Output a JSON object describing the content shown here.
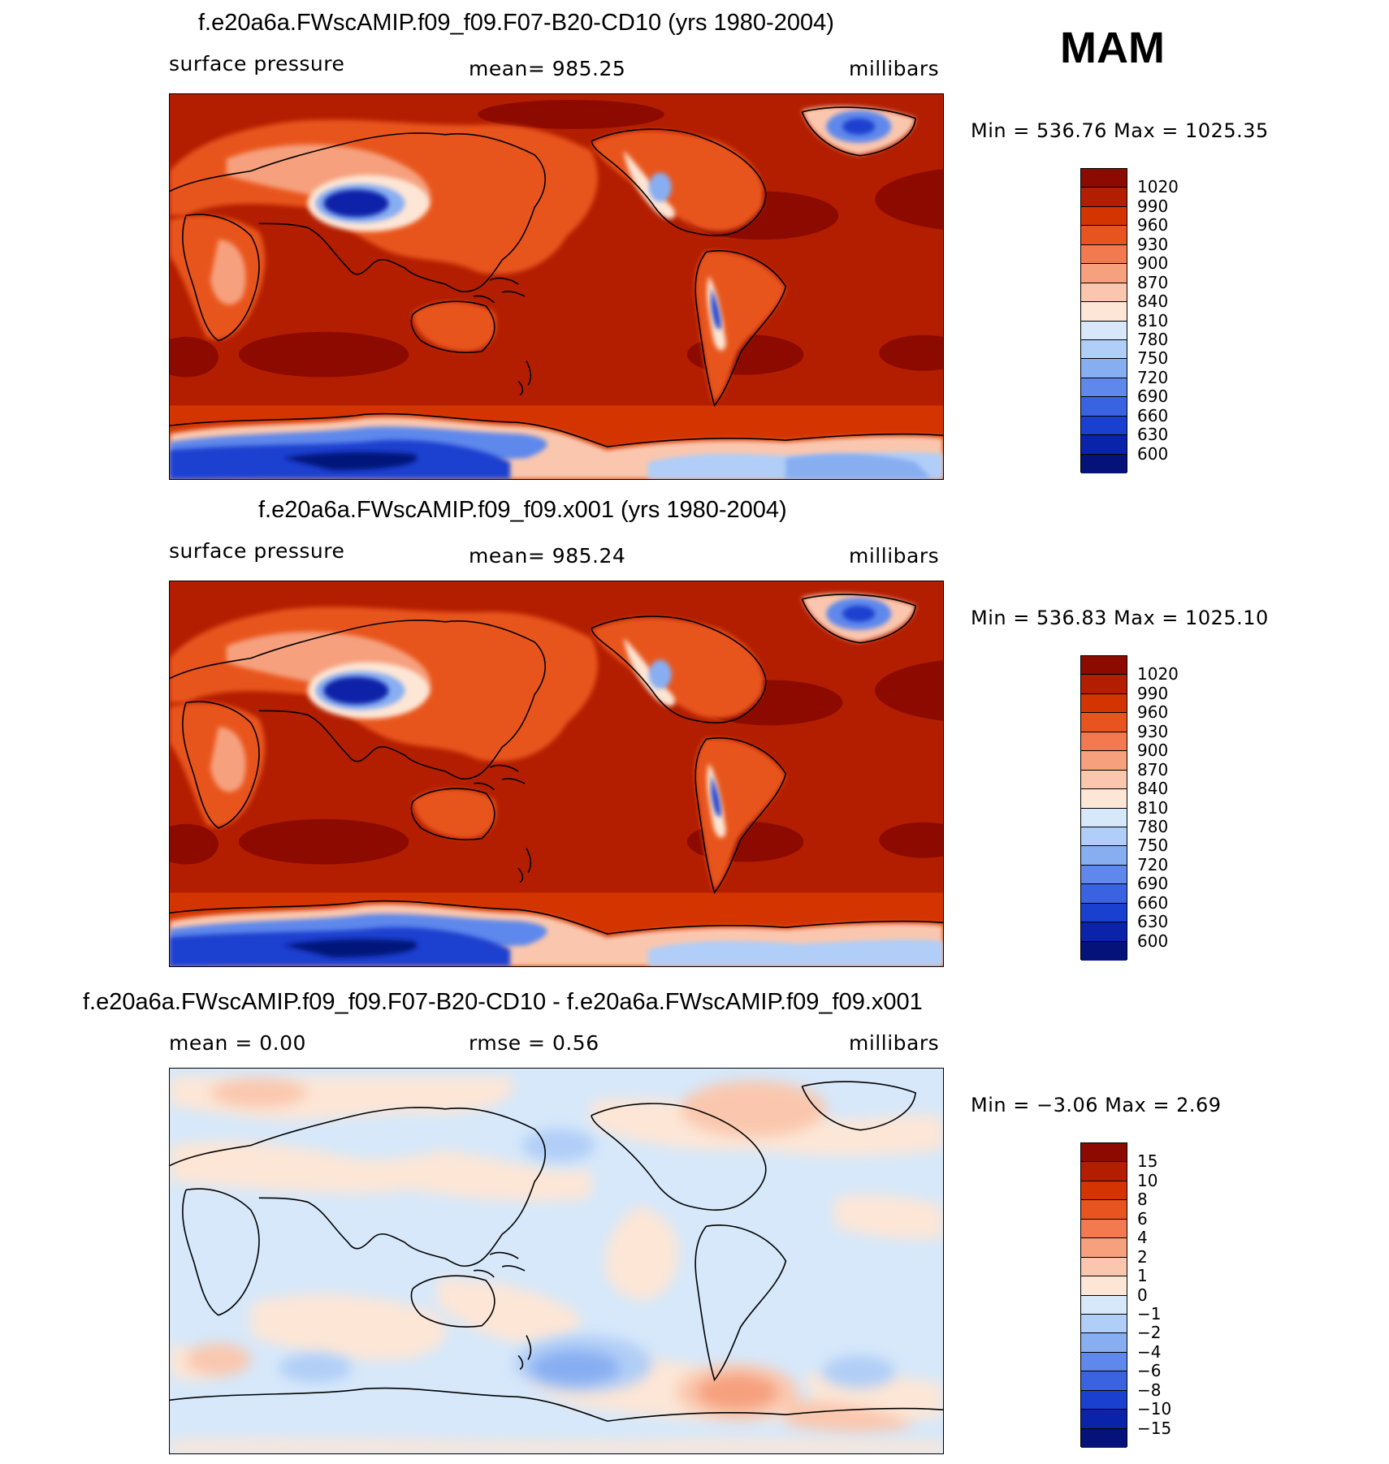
{
  "season": "MAM",
  "panels": [
    {
      "id": "test",
      "title": "f.e20a6a.FWscAMIP.f09_f09.F07-B20-CD10 (yrs 1980-2004)",
      "left_label": "surface pressure",
      "center_label": "mean=  985.25",
      "right_label": "millibars",
      "minmax": "Min  =  536.76  Max  =  1025.35",
      "colorbar": {
        "labels": [
          "1020",
          "990",
          "960",
          "930",
          "900",
          "870",
          "840",
          "810",
          "780",
          "750",
          "720",
          "690",
          "660",
          "630",
          "600"
        ],
        "colors": [
          "#8c0a00",
          "#b31e00",
          "#d43500",
          "#e8541f",
          "#f27a4e",
          "#f6a07e",
          "#fac7ae",
          "#fde6d6",
          "#d6e8fa",
          "#b0cef7",
          "#88aef2",
          "#5e88ec",
          "#3a63e2",
          "#1a40cf",
          "#0a23a8",
          "#05127a"
        ]
      }
    },
    {
      "id": "control",
      "title": "f.e20a6a.FWscAMIP.f09_f09.x001 (yrs 1980-2004)",
      "left_label": "surface pressure",
      "center_label": "mean=  985.24",
      "right_label": "millibars",
      "minmax": "Min  =  536.83  Max  =  1025.10",
      "colorbar": {
        "labels": [
          "1020",
          "990",
          "960",
          "930",
          "900",
          "870",
          "840",
          "810",
          "780",
          "750",
          "720",
          "690",
          "660",
          "630",
          "600"
        ],
        "colors": [
          "#8c0a00",
          "#b31e00",
          "#d43500",
          "#e8541f",
          "#f27a4e",
          "#f6a07e",
          "#fac7ae",
          "#fde6d6",
          "#d6e8fa",
          "#b0cef7",
          "#88aef2",
          "#5e88ec",
          "#3a63e2",
          "#1a40cf",
          "#0a23a8",
          "#05127a"
        ]
      }
    },
    {
      "id": "diff",
      "title": "f.e20a6a.FWscAMIP.f09_f09.F07-B20-CD10 - f.e20a6a.FWscAMIP.f09_f09.x001",
      "left_label": "mean =     0.00",
      "center_label": "rmse =     0.56",
      "right_label": "millibars",
      "minmax": "Min  =    −3.06  Max  =      2.69",
      "colorbar": {
        "labels": [
          "15",
          "10",
          "8",
          "6",
          "4",
          "2",
          "1",
          "0",
          "−1",
          "−2",
          "−4",
          "−6",
          "−8",
          "−10",
          "−15"
        ],
        "colors": [
          "#8c0a00",
          "#b31e00",
          "#d43500",
          "#e8541f",
          "#f27a4e",
          "#f6a07e",
          "#fac7ae",
          "#fde6d6",
          "#d6e8fa",
          "#b0cef7",
          "#88aef2",
          "#5e88ec",
          "#3a63e2",
          "#1a40cf",
          "#0a23a8",
          "#05127a"
        ]
      }
    }
  ]
}
